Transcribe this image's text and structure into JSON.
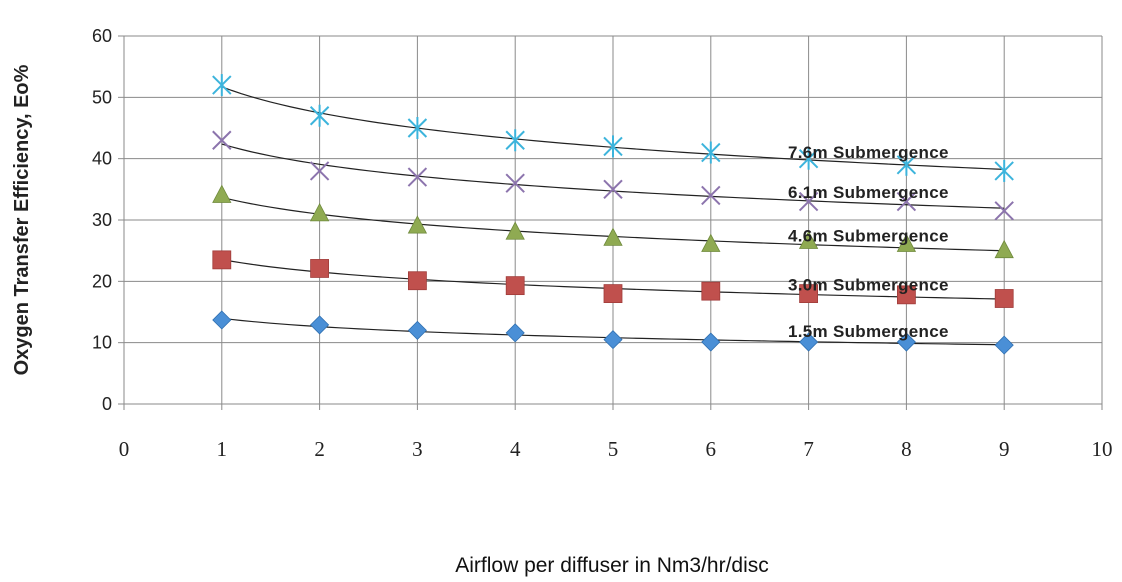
{
  "chart_data": {
    "type": "scatter",
    "xlabel": "Airflow per diffuser in Nm3/hr/disc",
    "ylabel": "Oxygen Transfer Efficiency, Eo%",
    "xlim": [
      0,
      10
    ],
    "ylim": [
      0,
      60
    ],
    "xticks": [
      "0",
      "1",
      "2",
      "3",
      "4",
      "5",
      "6",
      "7",
      "8",
      "9",
      "10"
    ],
    "yticks": [
      "0",
      "10",
      "20",
      "30",
      "40",
      "50",
      "60"
    ],
    "grid": true,
    "trendline": "logarithmic",
    "series": [
      {
        "marker": "diamond",
        "color": "#4a8fd6",
        "annotation": "1.5m Submergence",
        "x": [
          1,
          2,
          3,
          4,
          5,
          6,
          7,
          8,
          9
        ],
        "y": [
          13.7,
          12.9,
          12.0,
          11.6,
          10.5,
          10.1,
          10.1,
          10.1,
          9.6
        ]
      },
      {
        "marker": "square",
        "color": "#c0504d",
        "annotation": "3.0m Submergence",
        "x": [
          1,
          2,
          3,
          4,
          5,
          6,
          7,
          8,
          9
        ],
        "y": [
          23.5,
          22.1,
          20.1,
          19.3,
          18.0,
          18.4,
          18.0,
          17.8,
          17.2
        ]
      },
      {
        "marker": "triangle",
        "color": "#8faa52",
        "annotation": "4.6m Submergence",
        "x": [
          1,
          2,
          3,
          4,
          5,
          6,
          7,
          8,
          9
        ],
        "y": [
          34.0,
          31.0,
          29.0,
          28.0,
          27.0,
          26.0,
          26.5,
          26.0,
          25.0
        ]
      },
      {
        "marker": "x",
        "color": "#8c74ad",
        "annotation": "6.1m Submergence",
        "x": [
          1,
          2,
          3,
          4,
          5,
          6,
          7,
          8,
          9
        ],
        "y": [
          43.0,
          38.0,
          37.0,
          36.0,
          35.0,
          34.0,
          33.0,
          33.0,
          31.5
        ]
      },
      {
        "marker": "star",
        "color": "#3cb4dc",
        "annotation": "7.6m Submergence",
        "x": [
          1,
          2,
          3,
          4,
          5,
          6,
          7,
          8,
          9
        ],
        "y": [
          52.0,
          47.0,
          45.0,
          43.0,
          42.0,
          41.0,
          40.0,
          39.0,
          38.0
        ]
      }
    ]
  }
}
